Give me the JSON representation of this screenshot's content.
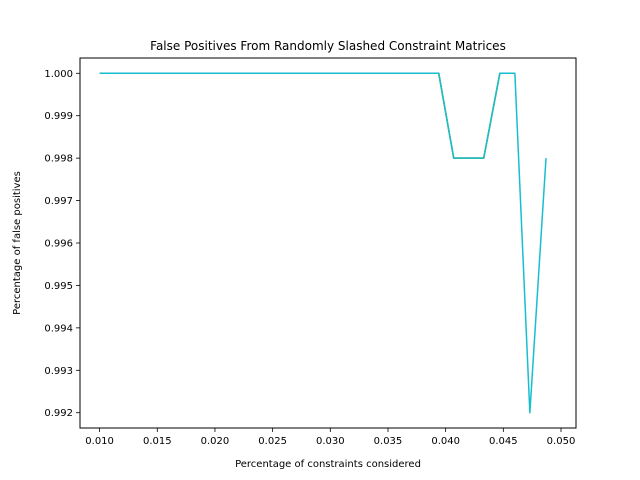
{
  "chart_data": {
    "type": "line",
    "title": "False Positives From Randomly Slashed Constraint Matrices",
    "xlabel": "Percentage of constraints considered",
    "ylabel": "Percentage of false positives",
    "xlim": [
      0.0083,
      0.0513
    ],
    "ylim": [
      0.99164,
      1.00036
    ],
    "xticks": [
      0.01,
      0.015,
      0.02,
      0.025,
      0.03,
      0.035,
      0.04,
      0.045,
      0.05
    ],
    "xtick_labels": [
      "0.010",
      "0.015",
      "0.020",
      "0.025",
      "0.030",
      "0.035",
      "0.040",
      "0.045",
      "0.050"
    ],
    "yticks": [
      0.992,
      0.993,
      0.994,
      0.995,
      0.996,
      0.997,
      0.998,
      0.999,
      1.0
    ],
    "ytick_labels": [
      "0.992",
      "0.993",
      "0.994",
      "0.995",
      "0.996",
      "0.997",
      "0.998",
      "0.999",
      "1.000"
    ],
    "grid": false,
    "series": [
      {
        "color": "#17becf",
        "x": [
          0.01,
          0.0394,
          0.0407,
          0.0433,
          0.0447,
          0.046,
          0.0473,
          0.0487
        ],
        "y": [
          1.0,
          1.0,
          0.998,
          0.998,
          1.0,
          1.0,
          0.992,
          0.998
        ]
      },
      {
        "color": "#7f7f7f",
        "x": [
          0.01,
          0.0394,
          0.0407,
          0.0433,
          0.0447,
          0.046
        ],
        "y": [
          1.0,
          1.0,
          0.998,
          0.998,
          1.0,
          1.0
        ]
      },
      {
        "color": "#bcbd22",
        "x": [
          0.01,
          0.0394,
          0.0407,
          0.0433,
          0.0447,
          0.046
        ],
        "y": [
          1.0,
          1.0,
          0.998,
          0.998,
          1.0,
          1.0
        ]
      },
      {
        "color": "#17becf",
        "x": [
          0.01,
          0.0394,
          0.0407,
          0.0433,
          0.0447,
          0.046
        ],
        "y": [
          1.0,
          1.0,
          0.998,
          0.998,
          1.0,
          1.0
        ]
      }
    ]
  }
}
